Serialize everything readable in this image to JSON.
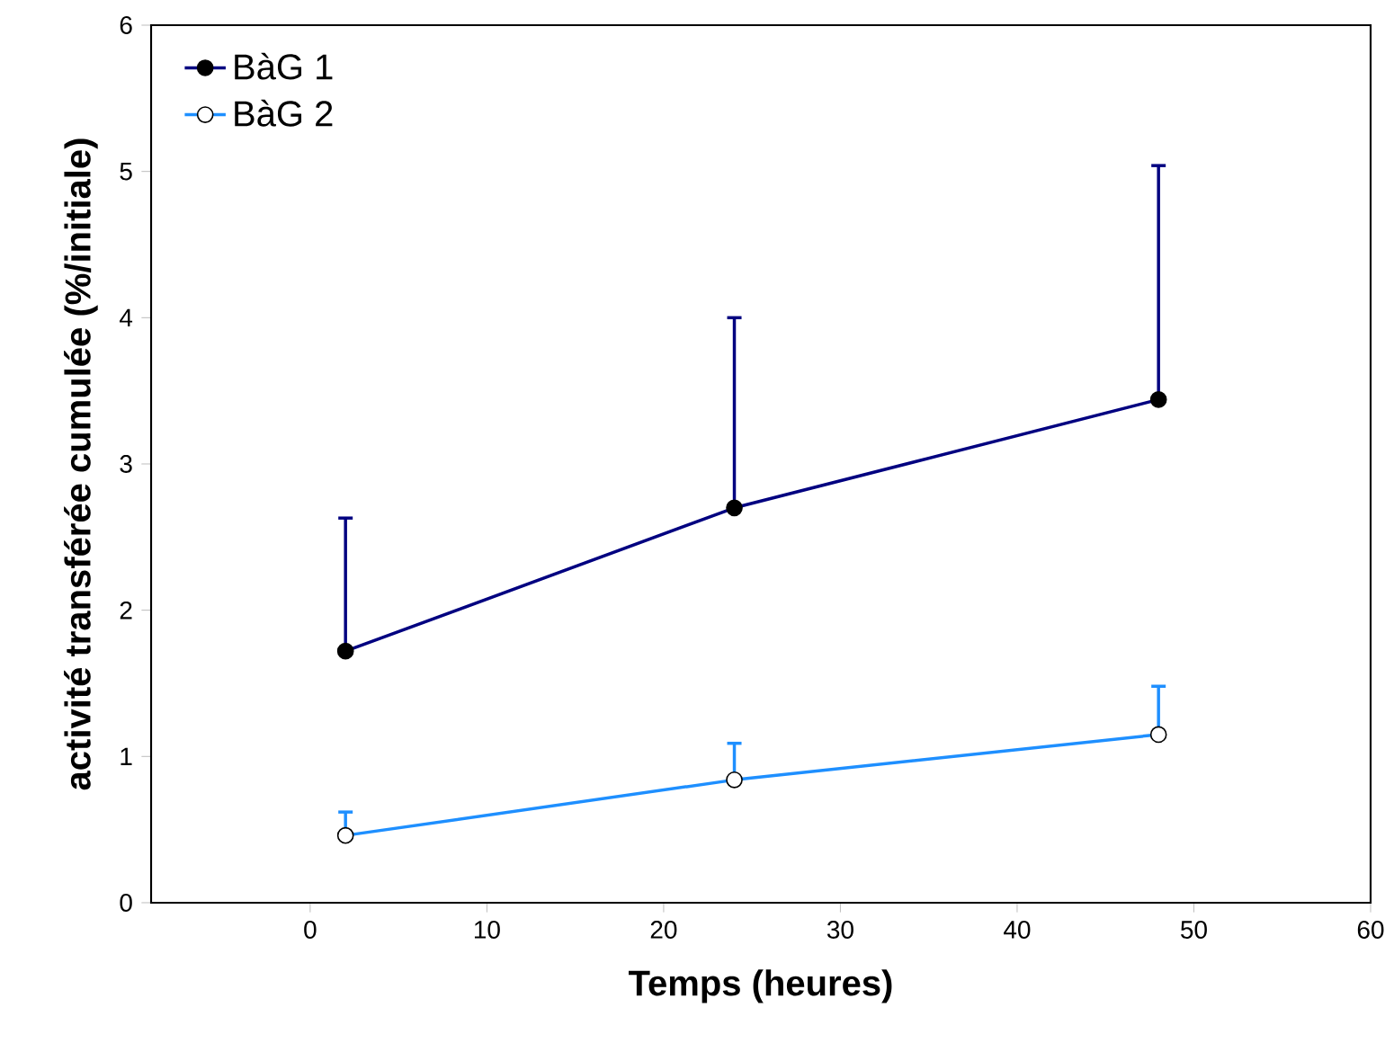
{
  "chart_data": {
    "type": "line",
    "xlabel": "Temps (heures)",
    "ylabel": "activité transférée cumulée (%/initiale)",
    "x": [
      2,
      24,
      48
    ],
    "series": [
      {
        "name": "BàG 1",
        "color": "#000080",
        "values": [
          1.72,
          2.7,
          3.44
        ],
        "errors": [
          [
            1.72,
            2.63
          ],
          [
            2.7,
            4.0
          ],
          [
            3.44,
            5.04
          ]
        ]
      },
      {
        "name": "BàG 2",
        "color": "#1e8fff",
        "values": [
          0.46,
          0.84,
          1.15
        ],
        "errors": [
          [
            0.46,
            0.62
          ],
          [
            0.84,
            1.09
          ],
          [
            1.15,
            1.48
          ]
        ]
      }
    ],
    "xlim": [
      -9,
      60
    ],
    "xticks": [
      0,
      10,
      20,
      30,
      40,
      50,
      60
    ],
    "ylim": [
      0,
      6
    ],
    "yticks": [
      0,
      1,
      2,
      3,
      4,
      5,
      6
    ],
    "grid": false,
    "legend": "top left",
    "marker": "circle",
    "line_style": "solid"
  }
}
